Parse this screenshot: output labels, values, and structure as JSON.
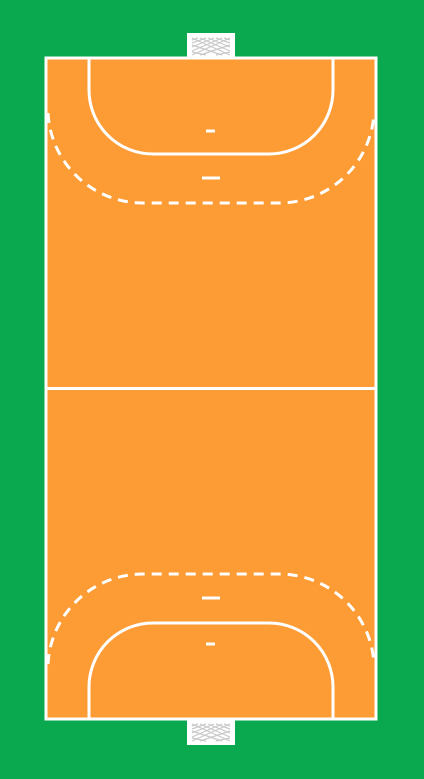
{
  "diagram": {
    "type": "handball-court",
    "orientation": "vertical",
    "colors": {
      "surround": "#0aa84f",
      "court": "#fd9b35",
      "lines": "#ffffff",
      "goal_frame": "#ffffff",
      "goal_net": "#c9c9c9"
    },
    "elements": [
      "top-goal",
      "bottom-goal",
      "center-line",
      "top-goal-area",
      "bottom-goal-area",
      "top-free-throw-line",
      "bottom-free-throw-line",
      "top-seven-meter-mark",
      "bottom-seven-meter-mark",
      "top-four-meter-mark",
      "bottom-four-meter-mark"
    ]
  }
}
